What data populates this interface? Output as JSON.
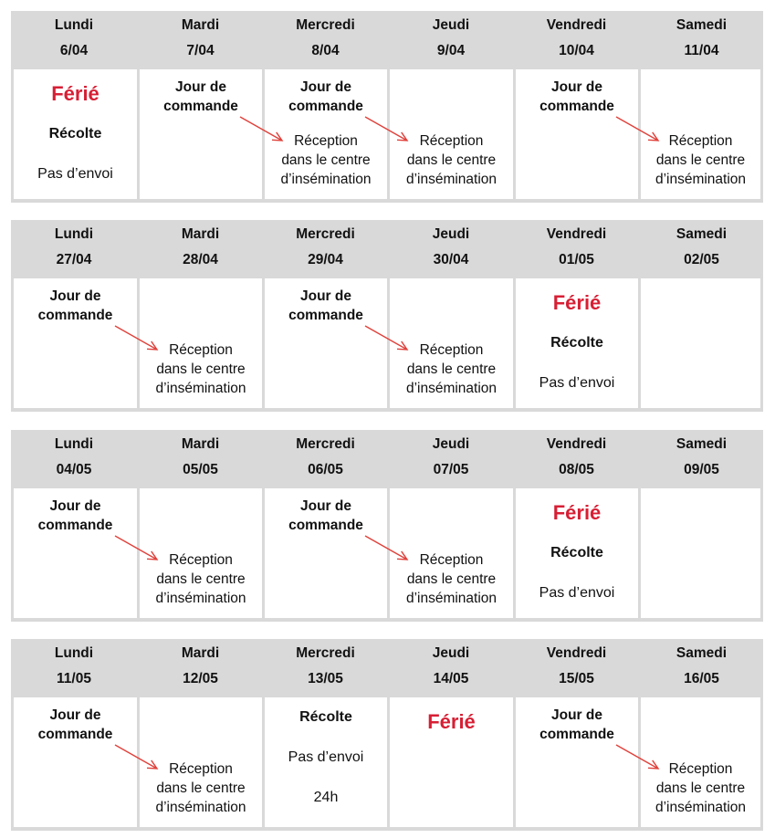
{
  "colors": {
    "header_bg": "#d9d9d9",
    "holiday": "#d71f34",
    "arrow": "#e0403a"
  },
  "labels": {
    "ferie": "Férié",
    "recolte": "Récolte",
    "pas_envoi": "Pas d’envoi",
    "commande": [
      "Jour de",
      "commande"
    ],
    "reception": [
      "Réception",
      "dans le centre",
      "d’insémination"
    ],
    "h24": "24h"
  },
  "weeks": [
    {
      "days": [
        {
          "name": "Lundi",
          "date": "6/04",
          "items": [
            "ferie",
            "recolte",
            "pas_envoi"
          ]
        },
        {
          "name": "Mardi",
          "date": "7/04",
          "items": [
            "commande"
          ]
        },
        {
          "name": "Mercredi",
          "date": "8/04",
          "items": [
            "commande",
            "reception"
          ]
        },
        {
          "name": "Jeudi",
          "date": "9/04",
          "items": [
            "reception"
          ]
        },
        {
          "name": "Vendredi",
          "date": "10/04",
          "items": [
            "commande"
          ]
        },
        {
          "name": "Samedi",
          "date": "11/04",
          "items": [
            "reception"
          ]
        }
      ],
      "arrows": [
        [
          1,
          2
        ],
        [
          2,
          3
        ],
        [
          4,
          5
        ]
      ]
    },
    {
      "days": [
        {
          "name": "Lundi",
          "date": "27/04",
          "items": [
            "commande"
          ]
        },
        {
          "name": "Mardi",
          "date": "28/04",
          "items": [
            "reception"
          ]
        },
        {
          "name": "Mercredi",
          "date": "29/04",
          "items": [
            "commande"
          ]
        },
        {
          "name": "Jeudi",
          "date": "30/04",
          "items": [
            "reception"
          ]
        },
        {
          "name": "Vendredi",
          "date": "01/05",
          "items": [
            "ferie",
            "recolte",
            "pas_envoi"
          ]
        },
        {
          "name": "Samedi",
          "date": "02/05",
          "items": []
        }
      ],
      "arrows": [
        [
          0,
          1
        ],
        [
          2,
          3
        ]
      ]
    },
    {
      "days": [
        {
          "name": "Lundi",
          "date": "04/05",
          "items": [
            "commande"
          ]
        },
        {
          "name": "Mardi",
          "date": "05/05",
          "items": [
            "reception"
          ]
        },
        {
          "name": "Mercredi",
          "date": "06/05",
          "items": [
            "commande"
          ]
        },
        {
          "name": "Jeudi",
          "date": "07/05",
          "items": [
            "reception"
          ]
        },
        {
          "name": "Vendredi",
          "date": "08/05",
          "items": [
            "ferie",
            "recolte",
            "pas_envoi"
          ]
        },
        {
          "name": "Samedi",
          "date": "09/05",
          "items": []
        }
      ],
      "arrows": [
        [
          0,
          1
        ],
        [
          2,
          3
        ]
      ]
    },
    {
      "days": [
        {
          "name": "Lundi",
          "date": "11/05",
          "items": [
            "commande"
          ]
        },
        {
          "name": "Mardi",
          "date": "12/05",
          "items": [
            "reception"
          ]
        },
        {
          "name": "Mercredi",
          "date": "13/05",
          "items": [
            "recolte",
            "pas_envoi",
            "h24"
          ]
        },
        {
          "name": "Jeudi",
          "date": "14/05",
          "items": [
            "ferie"
          ]
        },
        {
          "name": "Vendredi",
          "date": "15/05",
          "items": [
            "commande"
          ]
        },
        {
          "name": "Samedi",
          "date": "16/05",
          "items": [
            "reception"
          ]
        }
      ],
      "arrows": [
        [
          0,
          1
        ],
        [
          4,
          5
        ]
      ]
    }
  ]
}
